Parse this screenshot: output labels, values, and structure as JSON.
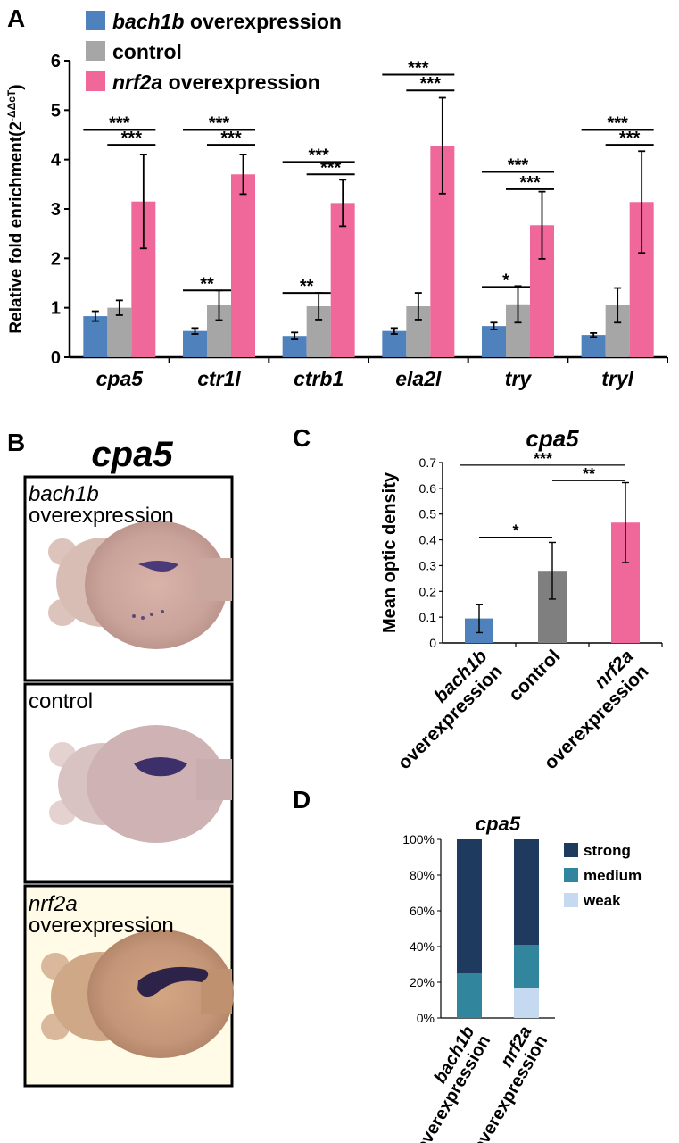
{
  "panels": {
    "A": {
      "letter": "A"
    },
    "B": {
      "letter": "B",
      "title": "cpa5",
      "image_captions": [
        {
          "gene": "bach1b",
          "text": "overexpression"
        },
        {
          "gene": "",
          "text": "control"
        },
        {
          "gene": "nrf2a",
          "text": "overexpression"
        }
      ]
    },
    "C": {
      "letter": "C"
    },
    "D": {
      "letter": "D"
    }
  },
  "colors": {
    "bach1b": "#4f81bd",
    "control": "#a6a6a6",
    "control_dark": "#7f7f7f",
    "nrf2a": "#f0679a",
    "strong": "#1f3a5f",
    "medium": "#31859c",
    "weak": "#c5d9f1"
  },
  "chart_data": [
    {
      "panel": "A",
      "type": "bar",
      "title": "",
      "ylabel": "Relative fold enrichment(2",
      "ylabel_superscript": "-ΔΔcT",
      "ylabel_close": ")",
      "ylim": [
        0,
        6
      ],
      "yticks": [
        "0",
        "1",
        "2",
        "3",
        "4",
        "5",
        "6"
      ],
      "categories": [
        "cpa5",
        "ctr1l",
        "ctrb1",
        "ela2l",
        "try",
        "tryl"
      ],
      "legend": [
        {
          "gene": "bach1b",
          "text": " overexpression"
        },
        {
          "gene": "",
          "text": "control"
        },
        {
          "gene": "nrf2a",
          "text": " overexpression"
        }
      ],
      "series": [
        {
          "name": "bach1b overexpression",
          "values": [
            0.83,
            0.53,
            0.43,
            0.53,
            0.63,
            0.45
          ],
          "errors": [
            0.1,
            0.06,
            0.07,
            0.06,
            0.07,
            0.04
          ]
        },
        {
          "name": "control",
          "values": [
            1.0,
            1.05,
            1.03,
            1.03,
            1.07,
            1.05
          ],
          "errors": [
            0.15,
            0.3,
            0.27,
            0.27,
            0.37,
            0.35
          ]
        },
        {
          "name": "nrf2a overexpression",
          "values": [
            3.15,
            3.7,
            3.12,
            4.28,
            2.67,
            3.14
          ],
          "errors": [
            0.95,
            0.4,
            0.47,
            0.97,
            0.68,
            1.03
          ]
        }
      ],
      "significance": [
        {
          "category": 0,
          "pairs": [
            {
              "from": 0,
              "to": 2,
              "y": 4.6,
              "label": "***"
            },
            {
              "from": 1,
              "to": 2,
              "y": 4.3,
              "label": "***"
            }
          ]
        },
        {
          "category": 1,
          "pairs": [
            {
              "from": 0,
              "to": 2,
              "y": 4.6,
              "label": "***"
            },
            {
              "from": 1,
              "to": 2,
              "y": 4.3,
              "label": "***"
            },
            {
              "from": 0,
              "to": 1,
              "y": 1.35,
              "label": "**"
            }
          ]
        },
        {
          "category": 2,
          "pairs": [
            {
              "from": 0,
              "to": 2,
              "y": 3.95,
              "label": "***"
            },
            {
              "from": 1,
              "to": 2,
              "y": 3.7,
              "label": "***"
            },
            {
              "from": 0,
              "to": 1,
              "y": 1.3,
              "label": "**"
            }
          ]
        },
        {
          "category": 3,
          "pairs": [
            {
              "from": 0,
              "to": 2,
              "y": 5.72,
              "label": "***"
            },
            {
              "from": 1,
              "to": 2,
              "y": 5.4,
              "label": "***"
            }
          ]
        },
        {
          "category": 4,
          "pairs": [
            {
              "from": 0,
              "to": 2,
              "y": 3.75,
              "label": "***"
            },
            {
              "from": 1,
              "to": 2,
              "y": 3.4,
              "label": "***"
            },
            {
              "from": 0,
              "to": 1,
              "y": 1.42,
              "label": "*"
            }
          ]
        },
        {
          "category": 5,
          "pairs": [
            {
              "from": 0,
              "to": 2,
              "y": 4.6,
              "label": "***"
            },
            {
              "from": 1,
              "to": 2,
              "y": 4.3,
              "label": "***"
            }
          ]
        }
      ]
    },
    {
      "panel": "C",
      "type": "bar",
      "title": "cpa5",
      "ylabel": "Mean optic density",
      "ylim": [
        0,
        0.7
      ],
      "yticks": [
        "0",
        "0.1",
        "0.2",
        "0.3",
        "0.4",
        "0.5",
        "0.6",
        "0.7"
      ],
      "categories": [
        {
          "gene": "bach1b",
          "text": "overexpression"
        },
        {
          "gene": "",
          "text": "control"
        },
        {
          "gene": "nrf2a",
          "text": "overexpression"
        }
      ],
      "values": [
        0.095,
        0.28,
        0.467
      ],
      "errors": [
        0.055,
        0.11,
        0.155
      ],
      "significance": [
        {
          "from": 0,
          "to": 2,
          "y": 0.69,
          "label": "***"
        },
        {
          "from": 1,
          "to": 2,
          "y": 0.63,
          "label": "**"
        },
        {
          "from": 0,
          "to": 1,
          "y": 0.41,
          "label": "*"
        }
      ]
    },
    {
      "panel": "D",
      "type": "bar",
      "stacked": true,
      "title": "cpa5",
      "ylim": [
        0,
        100
      ],
      "yticks": [
        "0%",
        "20%",
        "40%",
        "60%",
        "80%",
        "100%"
      ],
      "categories": [
        {
          "gene": "bach1b",
          "text": "overexpression"
        },
        {
          "gene": "nrf2a",
          "text": "overexpression"
        }
      ],
      "series": [
        {
          "name": "weak",
          "values": [
            0,
            17
          ]
        },
        {
          "name": "medium",
          "values": [
            25,
            24
          ]
        },
        {
          "name": "strong",
          "values": [
            75,
            59
          ]
        }
      ],
      "legend": [
        "strong",
        "medium",
        "weak"
      ]
    }
  ]
}
